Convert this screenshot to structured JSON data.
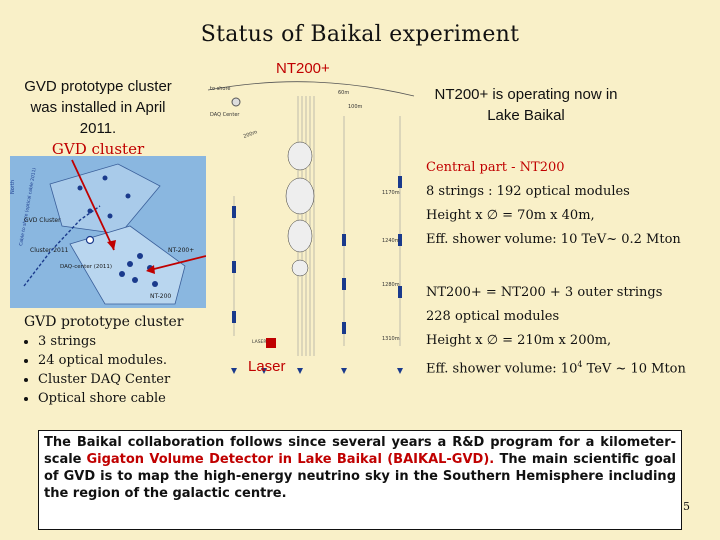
{
  "title": "Status of Baikal experiment",
  "intro": {
    "line1": "GVD prototype cluster",
    "line2": "was installed in April",
    "line3": "2011.",
    "highlight": "GVD cluster"
  },
  "map": {
    "labels": {
      "gvd_cluster": "GVD Cluster",
      "cluster_2011": "Cluster 2011",
      "nt200_plus": "NT-200+",
      "daq_center": "DAQ-center (2011)",
      "nt200": "NT-200",
      "north": "North",
      "cable": "Cable to shore (optical cable 2011)"
    }
  },
  "prototype": {
    "heading": "GVD prototype cluster",
    "items": [
      "3 strings",
      "24 optical modules.",
      "Cluster DAQ Center",
      "Optical shore cable"
    ]
  },
  "detector": {
    "name": "NT200+",
    "laser": "Laser",
    "labels": {
      "dist_60m": "60m",
      "dist_100m": "100m",
      "dist_200m": "200m",
      "shore": "to shore",
      "daq": "DAQ Center",
      "depth1": "1170m",
      "depth2": "1240m",
      "depth3": "1280m",
      "depth4": "1310m",
      "laser_box": "LASER"
    }
  },
  "right_intro": {
    "line1": "NT200+ is operating now in",
    "line2": "Lake Baikal"
  },
  "central": {
    "heading": "Central part - NT200",
    "line1": "8 strings : 192 optical modules",
    "line2": "Height x ∅ = 70m x 40m,",
    "line3": "Eff. shower volume:   10 TeV~ 0.2 Mton"
  },
  "outer": {
    "heading": "NT200+ = NT200 + 3 outer strings",
    "line1": "228 optical modules",
    "line2": "Height x ∅ = 210m x 200m,",
    "line3_pre": "Eff. shower volume: 10",
    "line3_sup": "4",
    "line3_post": " TeV ~ 10 Mton"
  },
  "bottom": {
    "part1": "The Baikal collaboration follows since several years a R&D program for a kilometer-scale",
    "part2": "Gigaton Volume Detector in Lake Baikal (BAIKAL-GVD).",
    "part3": " The main scientific goal of GVD is to map the high-energy neutrino sky in the Southern Hemisphere including the region of the galactic centre."
  },
  "page_number": "5",
  "colors": {
    "background": "#f9f0c8",
    "red": "#c00000",
    "map_water": "#8ab7e0",
    "string_blue": "#1a3a8c"
  }
}
